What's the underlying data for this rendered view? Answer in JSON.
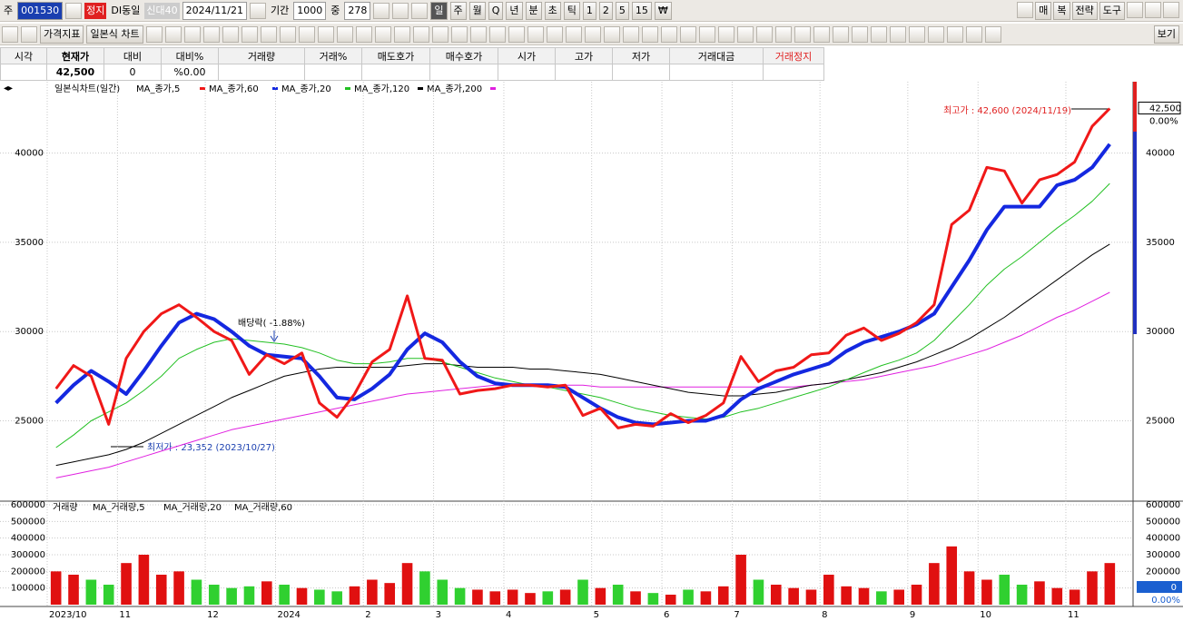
{
  "toolbar": {
    "row1_left": [
      "주",
      "001530",
      "정지",
      "DI동일",
      "신대40",
      "2024/11/21",
      "기간",
      "1000",
      "중",
      "278"
    ],
    "periods": [
      "일",
      "주",
      "월",
      "Q",
      "년",
      "분",
      "초",
      "틱",
      "1",
      "2",
      "5",
      "15",
      "₩"
    ],
    "row1_right": [
      "매",
      "복",
      "전략",
      "도구"
    ],
    "row2_left": [
      "가격지표",
      "일본식 차트"
    ],
    "row2_right": [
      "보기"
    ]
  },
  "info_table": {
    "headers": [
      "시각",
      "현재가",
      "대비",
      "대비%",
      "거래량",
      "거래%",
      "매도호가",
      "매수호가",
      "시가",
      "고가",
      "저가",
      "거래대금",
      "거래정지"
    ],
    "current": [
      "42,500",
      "0",
      "%0.00"
    ]
  },
  "chart_data": [
    {
      "type": "line",
      "title": "일본식차트(일간)",
      "ylim": [
        20600,
        44000
      ],
      "yticks": [
        25000,
        30000,
        35000,
        40000
      ],
      "grid": true,
      "last_price": {
        "value": 42500,
        "label": "42,500"
      },
      "change_label": "0.00%",
      "max_label": "최고가 : 42,600 (2024/11/19)",
      "min_label": "최저가 : 23,352 (2023/10/27)",
      "dividend_label": "배당락( -1.88%)",
      "series": [
        {
          "name": "MA_종가,200",
          "color": "#e020e0",
          "width": 1,
          "values": [
            21800,
            22000,
            22200,
            22400,
            22700,
            23000,
            23300,
            23600,
            23900,
            24200,
            24500,
            24700,
            24900,
            25100,
            25300,
            25500,
            25700,
            25900,
            26100,
            26300,
            26500,
            26600,
            26700,
            26800,
            26900,
            27000,
            27000,
            27000,
            27000,
            27000,
            27000,
            26900,
            26900,
            26900,
            26900,
            26900,
            26900,
            26900,
            26900,
            26900,
            26900,
            26900,
            26900,
            27000,
            27100,
            27200,
            27300,
            27500,
            27700,
            27900,
            28100,
            28400,
            28700,
            29000,
            29400,
            29800,
            30300,
            30800,
            31200,
            31700,
            32200
          ]
        },
        {
          "name": "MA_종가,120",
          "color": "#000000",
          "width": 1,
          "values": [
            22500,
            22700,
            22900,
            23100,
            23400,
            23800,
            24300,
            24800,
            25300,
            25800,
            26300,
            26700,
            27100,
            27500,
            27700,
            27900,
            28000,
            28000,
            28000,
            28000,
            28100,
            28200,
            28200,
            28100,
            28000,
            28000,
            28000,
            27900,
            27900,
            27800,
            27700,
            27600,
            27400,
            27200,
            27000,
            26800,
            26600,
            26500,
            26400,
            26400,
            26500,
            26600,
            26800,
            27000,
            27100,
            27300,
            27500,
            27700,
            28000,
            28300,
            28700,
            29100,
            29600,
            30200,
            30800,
            31500,
            32200,
            32900,
            33600,
            34300,
            34900
          ]
        },
        {
          "name": "MA_종가,20",
          "color": "#22c022",
          "width": 1,
          "values": [
            23500,
            24200,
            25000,
            25500,
            26000,
            26700,
            27500,
            28500,
            29000,
            29400,
            29600,
            29500,
            29400,
            29300,
            29100,
            28800,
            28400,
            28200,
            28200,
            28300,
            28500,
            28500,
            28300,
            28000,
            27700,
            27400,
            27200,
            27000,
            26900,
            26700,
            26500,
            26300,
            26000,
            25700,
            25500,
            25300,
            25200,
            25100,
            25200,
            25500,
            25700,
            26000,
            26300,
            26600,
            26900,
            27300,
            27700,
            28100,
            28400,
            28800,
            29500,
            30500,
            31500,
            32600,
            33500,
            34200,
            35000,
            35800,
            36500,
            37300,
            38300
          ]
        },
        {
          "name": "MA_종가,60",
          "color": "#1428e0",
          "width": 4,
          "values": [
            26000,
            27000,
            27800,
            27200,
            26500,
            27800,
            29200,
            30500,
            31000,
            30700,
            30000,
            29200,
            28700,
            28600,
            28500,
            27500,
            26300,
            26200,
            26800,
            27600,
            29000,
            29900,
            29400,
            28300,
            27500,
            27100,
            27000,
            27000,
            27000,
            26900,
            26300,
            25700,
            25200,
            24900,
            24800,
            24900,
            25000,
            25000,
            25300,
            26200,
            26800,
            27200,
            27600,
            27900,
            28200,
            28900,
            29400,
            29700,
            30000,
            30400,
            31000,
            32500,
            34000,
            35700,
            37000,
            37000,
            37000,
            38200,
            38500,
            39200,
            40500
          ]
        },
        {
          "name": "MA_종가,5",
          "color": "#f01818",
          "width": 3,
          "values": [
            26800,
            28100,
            27500,
            24800,
            28500,
            30000,
            31000,
            31500,
            30800,
            30000,
            29500,
            27600,
            28700,
            28200,
            28800,
            26000,
            25200,
            26500,
            28300,
            29000,
            32000,
            28500,
            28400,
            26500,
            26700,
            26800,
            27000,
            27000,
            26900,
            27000,
            25300,
            25700,
            24600,
            24800,
            24700,
            25400,
            24900,
            25300,
            26000,
            28600,
            27200,
            27800,
            28000,
            28700,
            28800,
            29800,
            30200,
            29500,
            29900,
            30500,
            31500,
            36000,
            36800,
            39200,
            39000,
            37200,
            38500,
            38800,
            39500,
            41500,
            42500
          ]
        }
      ]
    },
    {
      "type": "bar",
      "title": "거래량",
      "ylim": [
        0,
        600000
      ],
      "yticks": [
        100000,
        200000,
        300000,
        400000,
        500000,
        600000
      ],
      "grid": true,
      "up_color": "#e01010",
      "down_color": "#30d030",
      "legend": [
        "MA_거래량,5",
        "MA_거래량,20",
        "MA_거래량,60"
      ],
      "last_volume": "0",
      "change_label": "0.00%",
      "categories": [
        "2023/10",
        null,
        null,
        null,
        "11",
        null,
        null,
        null,
        null,
        "12",
        null,
        null,
        null,
        "2024",
        null,
        null,
        null,
        null,
        "2",
        null,
        null,
        null,
        "3",
        null,
        null,
        null,
        "4",
        null,
        null,
        null,
        null,
        "5",
        null,
        null,
        null,
        "6",
        null,
        null,
        null,
        "7",
        null,
        null,
        null,
        null,
        "8",
        null,
        null,
        null,
        null,
        "9",
        null,
        null,
        null,
        "10",
        null,
        null,
        null,
        null,
        "11",
        null,
        null
      ],
      "values": [
        200000,
        180000,
        150000,
        120000,
        250000,
        300000,
        180000,
        200000,
        150000,
        120000,
        100000,
        110000,
        140000,
        120000,
        100000,
        90000,
        80000,
        110000,
        150000,
        130000,
        250000,
        200000,
        150000,
        100000,
        90000,
        80000,
        90000,
        70000,
        80000,
        90000,
        150000,
        100000,
        120000,
        80000,
        70000,
        60000,
        90000,
        80000,
        110000,
        300000,
        150000,
        120000,
        100000,
        90000,
        180000,
        110000,
        100000,
        80000,
        90000,
        120000,
        250000,
        350000,
        200000,
        150000,
        180000,
        120000,
        140000,
        100000,
        90000,
        200000,
        250000
      ]
    }
  ]
}
